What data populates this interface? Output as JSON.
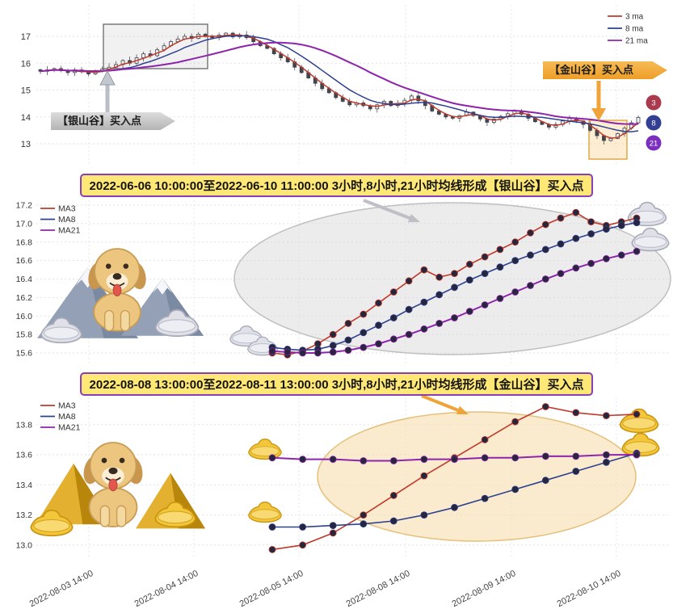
{
  "banners": [
    {
      "text": "2022-06-06 10:00:00至2022-06-10 11:00:00 3小时,8小时,21小时均线形成【银山谷】买入点",
      "border_color": "#8a3db6",
      "bg_color": "#ffe876"
    },
    {
      "text": "2022-08-08 13:00:00至2022-08-11 13:00:00 3小时,8小时,21小时均线形成【金山谷】买入点",
      "border_color": "#8a3db6",
      "bg_color": "#ffe876"
    }
  ],
  "annotations": {
    "silver_buy": "【银山谷】买入点",
    "gold_buy": "【金山谷】买入点",
    "silver_arrow_color": "#b9bec7",
    "gold_arrow_color": "#f0a338"
  },
  "chart_data": [
    {
      "id": "main-price-panel",
      "type": "candlestick",
      "title": "",
      "ylim": [
        12.2,
        18.1
      ],
      "yticks": [
        13,
        14,
        15,
        16,
        17
      ],
      "legend": [
        "3 ma",
        "8 ma",
        "21 ma"
      ],
      "colors": [
        "#c0392b",
        "#2e4190",
        "#8e24aa"
      ],
      "ma_periods": [
        3,
        8,
        21
      ],
      "end_badges": [
        "3",
        "8",
        "21"
      ],
      "badge_colors": [
        "#ab3a4e",
        "#323f92",
        "#7b2fbe"
      ],
      "closes": [
        15.7,
        15.75,
        15.8,
        15.72,
        15.65,
        15.75,
        15.68,
        15.6,
        15.7,
        15.78,
        15.85,
        15.95,
        16.1,
        16.0,
        16.2,
        16.35,
        16.28,
        16.5,
        16.65,
        16.8,
        16.9,
        17.0,
        16.92,
        17.08,
        17.0,
        16.95,
        17.05,
        17.12,
        16.98,
        17.05,
        16.95,
        16.8,
        16.65,
        16.55,
        16.35,
        16.2,
        16.05,
        15.85,
        15.65,
        15.45,
        15.25,
        15.05,
        14.9,
        14.72,
        14.58,
        14.45,
        14.52,
        14.42,
        14.3,
        14.45,
        14.58,
        14.42,
        14.5,
        14.62,
        14.78,
        14.6,
        14.42,
        14.22,
        14.1,
        14.0,
        13.95,
        14.05,
        14.18,
        14.05,
        13.92,
        13.8,
        13.92,
        14.02,
        14.12,
        14.22,
        14.1,
        13.95,
        13.82,
        13.72,
        13.62,
        13.72,
        13.85,
        13.95,
        13.85,
        13.72,
        13.5,
        13.3,
        13.12,
        13.2,
        13.38,
        13.58,
        13.78,
        13.98
      ],
      "highlights": [
        {
          "name": "silver-valley-region",
          "stroke": "#737373",
          "fill": "rgba(200,200,200,0.25)"
        },
        {
          "name": "gold-valley-region",
          "stroke": "#e0a23c",
          "fill": "rgba(250,205,130,0.35)"
        }
      ]
    },
    {
      "id": "silver-valley-detail",
      "type": "line",
      "title": "2022-06-06 10:00:00至2022-06-10 11:00:00 3小时,8小时,21小时均线形成【银山谷】买入点",
      "ylim": [
        15.5,
        17.3
      ],
      "yticks": [
        15.6,
        15.8,
        16.0,
        16.2,
        16.4,
        16.6,
        16.8,
        17.0,
        17.2
      ],
      "legend_position": "top-left",
      "marker_color": "#26263e",
      "series": [
        {
          "name": "MA3",
          "color": "#c0392b",
          "values": [
            15.6,
            15.58,
            15.62,
            15.7,
            15.8,
            15.92,
            16.02,
            16.14,
            16.26,
            16.38,
            16.5,
            16.42,
            16.46,
            16.56,
            16.64,
            16.72,
            16.8,
            16.9,
            16.99,
            17.06,
            17.12,
            17.02,
            16.98,
            17.02,
            17.06
          ]
        },
        {
          "name": "MA8",
          "color": "#2e4190",
          "values": [
            15.66,
            15.64,
            15.63,
            15.64,
            15.68,
            15.74,
            15.82,
            15.9,
            15.98,
            16.07,
            16.15,
            16.23,
            16.31,
            16.39,
            16.46,
            16.53,
            16.6,
            16.66,
            16.72,
            16.78,
            16.84,
            16.89,
            16.94,
            16.98,
            17.01
          ]
        },
        {
          "name": "MA21",
          "color": "#8e24aa",
          "values": [
            15.62,
            15.61,
            15.6,
            15.6,
            15.61,
            15.63,
            15.66,
            15.7,
            15.75,
            15.8,
            15.86,
            15.92,
            15.98,
            16.05,
            16.12,
            16.19,
            16.26,
            16.33,
            16.4,
            16.46,
            16.52,
            16.57,
            16.62,
            16.66,
            16.7
          ]
        }
      ],
      "highlight_ellipse": {
        "fill": "rgba(213,213,213,0.45)",
        "stroke": "#bfbfbf"
      }
    },
    {
      "id": "gold-valley-detail",
      "type": "line",
      "title": "2022-08-08 13:00:00至2022-08-11 13:00:00 3小时,8小时,21小时均线形成【金山谷】买入点",
      "ylim": [
        12.94,
        13.96
      ],
      "yticks": [
        13.0,
        13.2,
        13.4,
        13.6,
        13.8
      ],
      "legend_position": "top-left",
      "marker_color": "#26263e",
      "series": [
        {
          "name": "MA3",
          "color": "#c0392b",
          "values": [
            12.97,
            13.0,
            13.08,
            13.2,
            13.33,
            13.46,
            13.58,
            13.7,
            13.82,
            13.92,
            13.88,
            13.86,
            13.87
          ]
        },
        {
          "name": "MA8",
          "color": "#2e4190",
          "values": [
            13.12,
            13.12,
            13.13,
            13.14,
            13.16,
            13.2,
            13.25,
            13.31,
            13.37,
            13.43,
            13.49,
            13.55,
            13.61
          ]
        },
        {
          "name": "MA21",
          "color": "#8e24aa",
          "values": [
            13.58,
            13.57,
            13.57,
            13.56,
            13.56,
            13.57,
            13.57,
            13.58,
            13.58,
            13.59,
            13.59,
            13.6,
            13.6
          ]
        }
      ],
      "highlight_ellipse": {
        "fill": "rgba(248,219,166,0.55)",
        "stroke": "#e5c07b"
      },
      "xticklabels": [
        "2022-08-03 14:00",
        "2022-08-04 14:00",
        "2022-08-05 14:00",
        "2022-08-08 14:00",
        "2022-08-09 14:00",
        "2022-08-10 14:00"
      ]
    }
  ]
}
